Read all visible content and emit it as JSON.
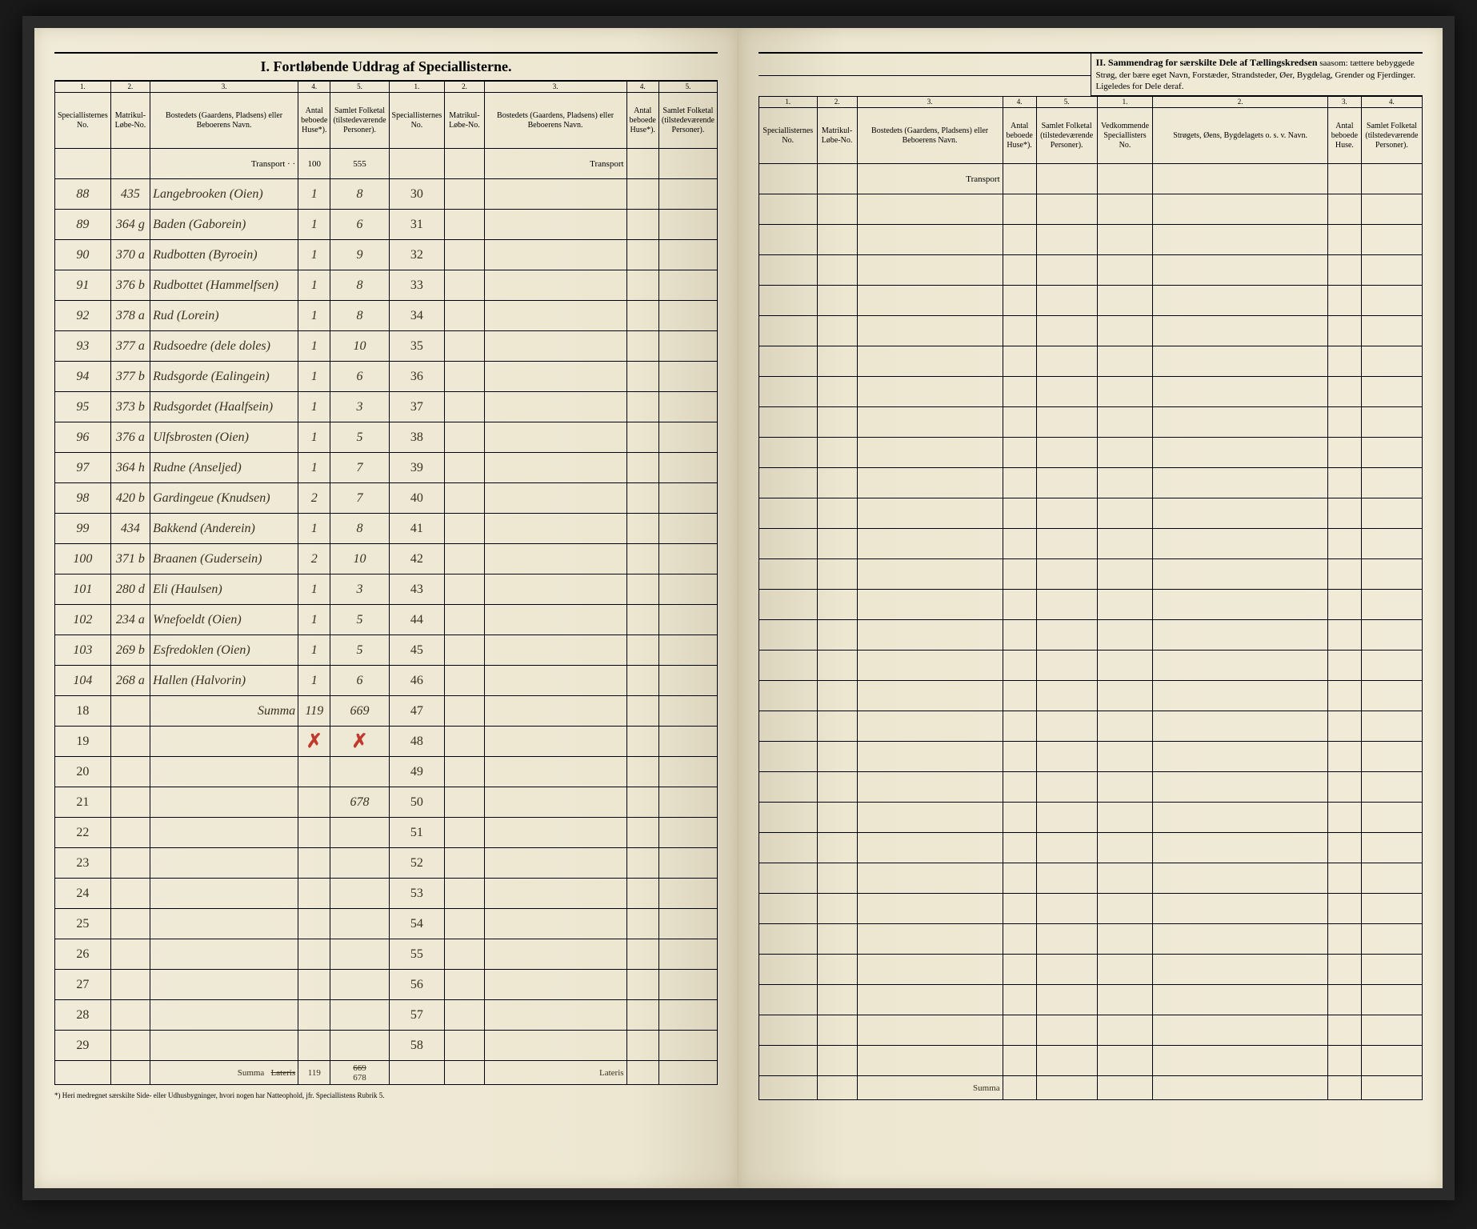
{
  "title": "I. Fortløbende Uddrag af Speciallisterne.",
  "section2_title_bold": "II. Sammendrag for særskilte Dele af Tællingskredsen",
  "section2_title_rest": "saasom: tættere bebyggede Strøg, der bære eget Navn, Forstæder, Strandsteder, Øer, Bygdelag, Grender og Fjerdinger. Ligeledes for Dele deraf.",
  "headers": {
    "col1": "Speciallisternes No.",
    "col2": "Matrikul-Løbe-No.",
    "col3": "Bostedets (Gaardens, Pladsens) eller Beboerens Navn.",
    "col4": "Antal beboede Huse*).",
    "col5": "Samlet Folketal (tilstedeværende Personer).",
    "s2col1": "Vedkommende Speciallisters No.",
    "s2col2": "Strøgets, Øens, Bygdelagets o. s. v. Navn.",
    "s2col3": "Antal beboede Huse.",
    "s2col4": "Samlet Folketal (tilstedeværende Personer)."
  },
  "transport": "Transport",
  "summa": "Summa",
  "lateris": "Lateris",
  "left_rows": [
    {
      "no": "88",
      "mat": "435",
      "name": "Langebrooken (Oien)",
      "huse": "1",
      "folk": "8"
    },
    {
      "no": "89",
      "mat": "364 g",
      "name": "Baden (Gaborein)",
      "huse": "1",
      "folk": "6"
    },
    {
      "no": "90",
      "mat": "370 a",
      "name": "Rudbotten (Byroein)",
      "huse": "1",
      "folk": "9"
    },
    {
      "no": "91",
      "mat": "376 b",
      "name": "Rudbottet (Hammelfsen)",
      "huse": "1",
      "folk": "8"
    },
    {
      "no": "92",
      "mat": "378 a",
      "name": "Rud (Lorein)",
      "huse": "1",
      "folk": "8"
    },
    {
      "no": "93",
      "mat": "377 a",
      "name": "Rudsoedre (dele doles)",
      "huse": "1",
      "folk": "10"
    },
    {
      "no": "94",
      "mat": "377 b",
      "name": "Rudsgorde (Ealingein)",
      "huse": "1",
      "folk": "6"
    },
    {
      "no": "95",
      "mat": "373 b",
      "name": "Rudsgordet (Haalfsein)",
      "huse": "1",
      "folk": "3"
    },
    {
      "no": "96",
      "mat": "376 a",
      "name": "Ulfsbrosten (Oien)",
      "huse": "1",
      "folk": "5"
    },
    {
      "no": "97",
      "mat": "364 h",
      "name": "Rudne (Anseljed)",
      "huse": "1",
      "folk": "7"
    },
    {
      "no": "98",
      "mat": "420 b",
      "name": "Gardingeue (Knudsen)",
      "huse": "2",
      "folk": "7"
    },
    {
      "no": "99",
      "mat": "434",
      "name": "Bakkend (Anderein)",
      "huse": "1",
      "folk": "8"
    },
    {
      "no": "100",
      "mat": "371 b",
      "name": "Braanen (Gudersein)",
      "huse": "2",
      "folk": "10"
    },
    {
      "no": "101",
      "mat": "280 d",
      "name": "Eli (Haulsen)",
      "huse": "1",
      "folk": "3"
    },
    {
      "no": "102",
      "mat": "234 a",
      "name": "Wnefoeldt (Oien)",
      "huse": "1",
      "folk": "5"
    },
    {
      "no": "103",
      "mat": "269 b",
      "name": "Esfredoklen (Oien)",
      "huse": "1",
      "folk": "5"
    },
    {
      "no": "104",
      "mat": "268 a",
      "name": "Hallen (Halvorin)",
      "huse": "1",
      "folk": "6"
    }
  ],
  "transport_values": {
    "huse": "100",
    "folk": "555"
  },
  "summa_18": {
    "label": "Summa",
    "huse": "119",
    "folk": "669"
  },
  "row_21_folk": "678",
  "lateris_values": {
    "label": "Summa",
    "lateris": "Lateris",
    "huse": "119",
    "folk_strike": "669",
    "folk": "678"
  },
  "left_empty_nums": [
    "18",
    "19",
    "20",
    "21",
    "22",
    "23",
    "24",
    "25",
    "26",
    "27",
    "28",
    "29"
  ],
  "right_col1_nums": [
    "30",
    "31",
    "32",
    "33",
    "34",
    "35",
    "36",
    "37",
    "38",
    "39",
    "40",
    "41",
    "42",
    "43",
    "44",
    "45",
    "46",
    "47",
    "48",
    "49",
    "50",
    "51",
    "52",
    "53",
    "54",
    "55",
    "56",
    "57",
    "58"
  ],
  "footnote": "*) Heri medregnet særskilte Side- eller Udhusbygninger, hvori nogen har Natteophold, jfr. Speciallistens Rubrik 5.",
  "colors": {
    "paper": "#f0ebd8",
    "ink": "#3a3020",
    "red": "#c0392b",
    "border": "#000000"
  }
}
